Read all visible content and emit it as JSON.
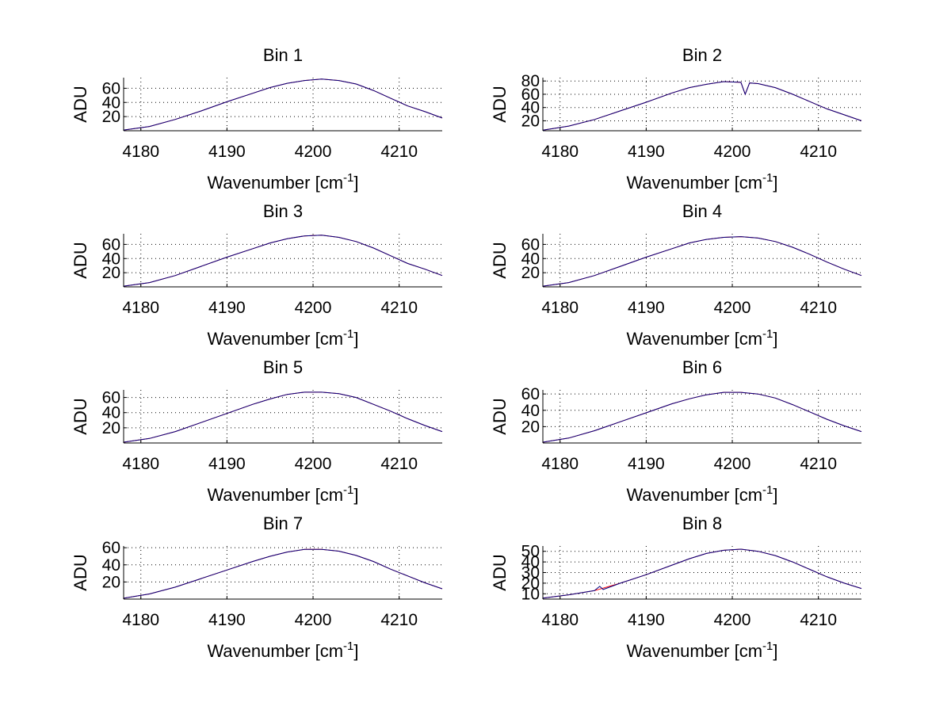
{
  "chart_data": [
    {
      "type": "line",
      "title": "Bin 1",
      "xlabel": "Wavenumber [cm",
      "xlabel_superscript": "-1",
      "xlabel_suffix": "]",
      "ylabel": "ADU",
      "xlim": [
        4178,
        4215
      ],
      "ylim": [
        0,
        75
      ],
      "xticks": [
        4180,
        4190,
        4200,
        4210
      ],
      "yticks": [
        20,
        40,
        60
      ],
      "grid": true,
      "series": [
        {
          "color": "#ff0000",
          "x": [
            4178,
            4181,
            4184,
            4187,
            4190,
            4193,
            4195,
            4197,
            4199,
            4201,
            4203,
            4205,
            4207,
            4209,
            4211,
            4213,
            4215
          ],
          "y": [
            1,
            6,
            16,
            28,
            41,
            53,
            61,
            67,
            71,
            73,
            71,
            66,
            57,
            46,
            35,
            27,
            18
          ]
        },
        {
          "color": "#000080",
          "x": [
            4178,
            4181,
            4184,
            4187,
            4190,
            4193,
            4195,
            4197,
            4199,
            4201,
            4203,
            4205,
            4207,
            4209,
            4211,
            4213,
            4215
          ],
          "y": [
            1,
            6,
            16,
            28,
            41,
            53,
            61,
            67,
            71,
            73,
            71,
            66,
            57,
            46,
            35,
            27,
            18
          ]
        }
      ]
    },
    {
      "type": "line",
      "title": "Bin 2",
      "xlabel": "Wavenumber [cm",
      "xlabel_superscript": "-1",
      "xlabel_suffix": "]",
      "ylabel": "ADU",
      "xlim": [
        4178,
        4215
      ],
      "ylim": [
        5,
        85
      ],
      "xticks": [
        4180,
        4190,
        4200,
        4210
      ],
      "yticks": [
        20,
        40,
        60,
        80
      ],
      "grid": true,
      "series": [
        {
          "color": "#ff0000",
          "x": [
            4178,
            4181,
            4184,
            4187,
            4190,
            4193,
            4195,
            4197,
            4199,
            4201,
            4201.5,
            4202,
            4203,
            4205,
            4207,
            4209,
            4211,
            4213,
            4215
          ],
          "y": [
            6,
            12,
            22,
            35,
            48,
            62,
            70,
            75,
            79,
            78,
            60,
            77,
            76,
            70,
            60,
            49,
            38,
            29,
            20
          ]
        },
        {
          "color": "#000080",
          "x": [
            4178,
            4181,
            4184,
            4187,
            4190,
            4193,
            4195,
            4197,
            4199,
            4201,
            4201.5,
            4202,
            4203,
            4205,
            4207,
            4209,
            4211,
            4213,
            4215
          ],
          "y": [
            6,
            12,
            22,
            35,
            48,
            62,
            70,
            75,
            79,
            78,
            60,
            77,
            76,
            70,
            60,
            49,
            38,
            29,
            20
          ]
        }
      ]
    },
    {
      "type": "line",
      "title": "Bin 3",
      "xlabel": "Wavenumber [cm",
      "xlabel_superscript": "-1",
      "xlabel_suffix": "]",
      "ylabel": "ADU",
      "xlim": [
        4178,
        4215
      ],
      "ylim": [
        0,
        75
      ],
      "xticks": [
        4180,
        4190,
        4200,
        4210
      ],
      "yticks": [
        20,
        40,
        60
      ],
      "grid": true,
      "series": [
        {
          "color": "#ff0000",
          "x": [
            4178,
            4181,
            4184,
            4187,
            4190,
            4193,
            4195,
            4197,
            4199,
            4201,
            4203,
            4205,
            4207,
            4209,
            4211,
            4213,
            4215
          ],
          "y": [
            1,
            6,
            16,
            29,
            42,
            54,
            62,
            68,
            72,
            73,
            70,
            64,
            55,
            44,
            33,
            25,
            16
          ]
        },
        {
          "color": "#000080",
          "x": [
            4178,
            4181,
            4184,
            4187,
            4190,
            4193,
            4195,
            4197,
            4199,
            4201,
            4203,
            4205,
            4207,
            4209,
            4211,
            4213,
            4215
          ],
          "y": [
            1,
            6,
            16,
            29,
            42,
            54,
            62,
            68,
            72,
            73,
            70,
            64,
            55,
            44,
            33,
            25,
            16
          ]
        }
      ]
    },
    {
      "type": "line",
      "title": "Bin 4",
      "xlabel": "Wavenumber [cm",
      "xlabel_superscript": "-1",
      "xlabel_suffix": "]",
      "ylabel": "ADU",
      "xlim": [
        4178,
        4215
      ],
      "ylim": [
        0,
        75
      ],
      "xticks": [
        4180,
        4190,
        4200,
        4210
      ],
      "yticks": [
        20,
        40,
        60
      ],
      "grid": true,
      "series": [
        {
          "color": "#ff0000",
          "x": [
            4178,
            4181,
            4184,
            4187,
            4190,
            4193,
            4195,
            4197,
            4199,
            4201,
            4203,
            4205,
            4207,
            4209,
            4211,
            4213,
            4215
          ],
          "y": [
            1,
            6,
            16,
            29,
            42,
            54,
            62,
            67,
            70,
            71,
            69,
            64,
            56,
            46,
            35,
            25,
            16
          ]
        },
        {
          "color": "#000080",
          "x": [
            4178,
            4181,
            4184,
            4187,
            4190,
            4193,
            4195,
            4197,
            4199,
            4201,
            4203,
            4205,
            4207,
            4209,
            4211,
            4213,
            4215
          ],
          "y": [
            1,
            6,
            16,
            29,
            42,
            54,
            62,
            67,
            70,
            71,
            69,
            64,
            56,
            46,
            35,
            25,
            16
          ]
        }
      ]
    },
    {
      "type": "line",
      "title": "Bin 5",
      "xlabel": "Wavenumber [cm",
      "xlabel_superscript": "-1",
      "xlabel_suffix": "]",
      "ylabel": "ADU",
      "xlim": [
        4178,
        4215
      ],
      "ylim": [
        0,
        70
      ],
      "xticks": [
        4180,
        4190,
        4200,
        4210
      ],
      "yticks": [
        20,
        40,
        60
      ],
      "grid": true,
      "series": [
        {
          "color": "#ff0000",
          "x": [
            4178,
            4181,
            4184,
            4187,
            4190,
            4193,
            4195,
            4197,
            4199,
            4201,
            4203,
            4205,
            4207,
            4209,
            4211,
            4213,
            4215
          ],
          "y": [
            1,
            6,
            15,
            27,
            39,
            51,
            58,
            64,
            67,
            67,
            65,
            60,
            51,
            42,
            32,
            23,
            15
          ]
        },
        {
          "color": "#000080",
          "x": [
            4178,
            4181,
            4184,
            4187,
            4190,
            4193,
            4195,
            4197,
            4199,
            4201,
            4203,
            4205,
            4207,
            4209,
            4211,
            4213,
            4215
          ],
          "y": [
            1,
            6,
            15,
            27,
            39,
            51,
            58,
            64,
            67,
            67,
            65,
            60,
            51,
            42,
            32,
            23,
            15
          ]
        }
      ]
    },
    {
      "type": "line",
      "title": "Bin 6",
      "xlabel": "Wavenumber [cm",
      "xlabel_superscript": "-1",
      "xlabel_suffix": "]",
      "ylabel": "ADU",
      "xlim": [
        4178,
        4215
      ],
      "ylim": [
        0,
        65
      ],
      "xticks": [
        4180,
        4190,
        4200,
        4210
      ],
      "yticks": [
        20,
        40,
        60
      ],
      "grid": true,
      "series": [
        {
          "color": "#ff0000",
          "x": [
            4178,
            4181,
            4184,
            4187,
            4190,
            4193,
            4195,
            4197,
            4199,
            4201,
            4203,
            4205,
            4207,
            4209,
            4211,
            4213,
            4215
          ],
          "y": [
            1,
            6,
            15,
            26,
            37,
            48,
            54,
            59,
            62,
            62,
            60,
            55,
            47,
            38,
            29,
            21,
            14
          ]
        },
        {
          "color": "#000080",
          "x": [
            4178,
            4181,
            4184,
            4187,
            4190,
            4193,
            4195,
            4197,
            4199,
            4201,
            4203,
            4205,
            4207,
            4209,
            4211,
            4213,
            4215
          ],
          "y": [
            1,
            6,
            15,
            26,
            37,
            48,
            54,
            59,
            62,
            62,
            60,
            55,
            47,
            38,
            29,
            21,
            14
          ]
        }
      ]
    },
    {
      "type": "line",
      "title": "Bin 7",
      "xlabel": "Wavenumber [cm",
      "xlabel_superscript": "-1",
      "xlabel_suffix": "]",
      "ylabel": "ADU",
      "xlim": [
        4178,
        4215
      ],
      "ylim": [
        0,
        62
      ],
      "xticks": [
        4180,
        4190,
        4200,
        4210
      ],
      "yticks": [
        20,
        40,
        60
      ],
      "grid": true,
      "series": [
        {
          "color": "#ff0000",
          "x": [
            4178,
            4181,
            4184,
            4187,
            4190,
            4193,
            4195,
            4197,
            4199,
            4201,
            4203,
            4205,
            4207,
            4209,
            4211,
            4213,
            4215
          ],
          "y": [
            1,
            6,
            14,
            24,
            34,
            44,
            50,
            55,
            58,
            58,
            56,
            51,
            44,
            35,
            27,
            19,
            12
          ]
        },
        {
          "color": "#000080",
          "x": [
            4178,
            4181,
            4184,
            4187,
            4190,
            4193,
            4195,
            4197,
            4199,
            4201,
            4203,
            4205,
            4207,
            4209,
            4211,
            4213,
            4215
          ],
          "y": [
            1,
            6,
            14,
            24,
            34,
            44,
            50,
            55,
            58,
            58,
            56,
            51,
            44,
            35,
            27,
            19,
            12
          ]
        }
      ]
    },
    {
      "type": "line",
      "title": "Bin 8",
      "xlabel": "Wavenumber [cm",
      "xlabel_superscript": "-1",
      "xlabel_suffix": "]",
      "ylabel": "ADU",
      "xlim": [
        4178,
        4215
      ],
      "ylim": [
        5,
        55
      ],
      "xticks": [
        4180,
        4190,
        4200,
        4210
      ],
      "yticks": [
        10,
        20,
        30,
        40,
        50
      ],
      "grid": true,
      "series": [
        {
          "color": "#ff0000",
          "x": [
            4178,
            4181,
            4184,
            4187,
            4190,
            4193,
            4195,
            4197,
            4199,
            4201,
            4203,
            4205,
            4207,
            4209,
            4211,
            4213,
            4215
          ],
          "y": [
            6,
            9,
            13,
            20,
            28,
            37,
            43,
            48,
            51,
            52,
            50,
            46,
            40,
            33,
            26,
            20,
            15
          ]
        },
        {
          "color": "#000080",
          "x": [
            4178,
            4181,
            4184,
            4184.6,
            4185,
            4187,
            4190,
            4193,
            4195,
            4197,
            4199,
            4201,
            4203,
            4205,
            4207,
            4209,
            4211,
            4213,
            4215
          ],
          "y": [
            6,
            9,
            13,
            17,
            14,
            20,
            28,
            37,
            43,
            48,
            51,
            52,
            50,
            46,
            40,
            33,
            26,
            20,
            15
          ]
        }
      ]
    }
  ]
}
